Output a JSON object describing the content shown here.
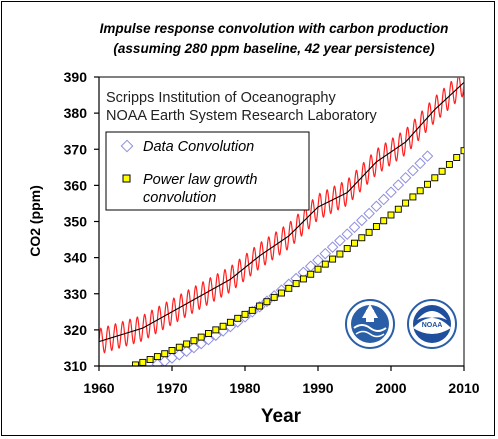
{
  "chart_data": {
    "type": "line",
    "title": "Impulse response convolution with carbon production",
    "subtitle": "(assuming 280 ppm baseline, 42 year persistence)",
    "xlabel": "Year",
    "ylabel": "CO2 (ppm)",
    "xlim": [
      1960,
      2010
    ],
    "ylim": [
      310,
      390
    ],
    "x_ticks": [
      "1960",
      "1970",
      "1980",
      "1990",
      "2000",
      "2010"
    ],
    "y_ticks": [
      "310",
      "320",
      "330",
      "340",
      "350",
      "360",
      "370",
      "380",
      "390"
    ],
    "image_labels": [
      "Scripps Institution of Oceanography",
      "NOAA Earth System Research Laboratory"
    ],
    "legend_position": "upper-left",
    "series": [
      {
        "name": "Data Convolution",
        "marker": "diamond",
        "color": "#8f8fe0",
        "x": [
          1968,
          1969,
          1970,
          1971,
          1972,
          1973,
          1974,
          1975,
          1976,
          1977,
          1978,
          1979,
          1980,
          1981,
          1982,
          1983,
          1984,
          1985,
          1986,
          1987,
          1988,
          1989,
          1990,
          1991,
          1992,
          1993,
          1994,
          1995,
          1996,
          1997,
          1998,
          1999,
          2000,
          2001,
          2002,
          2003,
          2004,
          2005
        ],
        "y": [
          310.5,
          311.3,
          312.2,
          313.1,
          314.1,
          315.1,
          316.2,
          317.3,
          318.5,
          319.7,
          320.9,
          322.2,
          323.6,
          325.0,
          326.4,
          327.9,
          329.4,
          331.0,
          332.6,
          334.2,
          335.9,
          337.6,
          339.3,
          341.1,
          342.9,
          344.7,
          346.5,
          348.4,
          350.3,
          352.2,
          354.2,
          356.1,
          358.1,
          360.1,
          362.1,
          364.1,
          366.1,
          368.1
        ]
      },
      {
        "name": "Power law growth convolution",
        "marker": "square",
        "color": "#ffff00",
        "x": [
          1965,
          1966,
          1967,
          1968,
          1969,
          1970,
          1971,
          1972,
          1973,
          1974,
          1975,
          1976,
          1977,
          1978,
          1979,
          1980,
          1981,
          1982,
          1983,
          1984,
          1985,
          1986,
          1987,
          1988,
          1989,
          1990,
          1991,
          1992,
          1993,
          1994,
          1995,
          1996,
          1997,
          1998,
          1999,
          2000,
          2001,
          2002,
          2003,
          2004,
          2005,
          2006,
          2007,
          2008,
          2009,
          2010
        ],
        "y": [
          310.3,
          311.0,
          311.8,
          312.6,
          313.4,
          314.3,
          315.2,
          316.1,
          317.0,
          318.0,
          319.0,
          320.0,
          321.0,
          322.1,
          323.2,
          324.3,
          325.4,
          326.6,
          327.8,
          329.0,
          330.2,
          331.5,
          332.8,
          334.1,
          335.4,
          336.8,
          338.2,
          339.6,
          341.0,
          342.5,
          344.0,
          345.5,
          347.0,
          348.6,
          350.2,
          351.8,
          353.4,
          355.1,
          356.8,
          358.5,
          360.3,
          362.1,
          363.9,
          365.8,
          367.7,
          369.6
        ]
      }
    ],
    "background_series": [
      {
        "color": "#ff2020",
        "x": [
          1958,
          1962,
          1966,
          1970,
          1974,
          1978,
          1982,
          1986,
          1990,
          1994,
          1998,
          2002,
          2006,
          2010
        ],
        "y": [
          315.5,
          318.0,
          320.5,
          325.0,
          329.5,
          334.0,
          340.5,
          346.0,
          354.0,
          358.0,
          366.5,
          372.0,
          381.0,
          388.5
        ],
        "seasonal_amplitude": 3.5
      },
      {
        "color": "#000000",
        "x": [
          1958,
          1962,
          1966,
          1970,
          1974,
          1978,
          1982,
          1986,
          1990,
          1994,
          1998,
          2002,
          2006,
          2010
        ],
        "y": [
          315.5,
          318.0,
          320.5,
          325.0,
          329.5,
          334.0,
          340.5,
          346.0,
          354.0,
          358.0,
          366.5,
          372.0,
          381.0,
          388.5
        ],
        "seasonal_amplitude": 0
      }
    ],
    "colors": {
      "background_data": "#ff2020",
      "trend_line": "#000000",
      "diamond_marker": "#8f8fe0",
      "square_fill": "#ffff00"
    }
  }
}
